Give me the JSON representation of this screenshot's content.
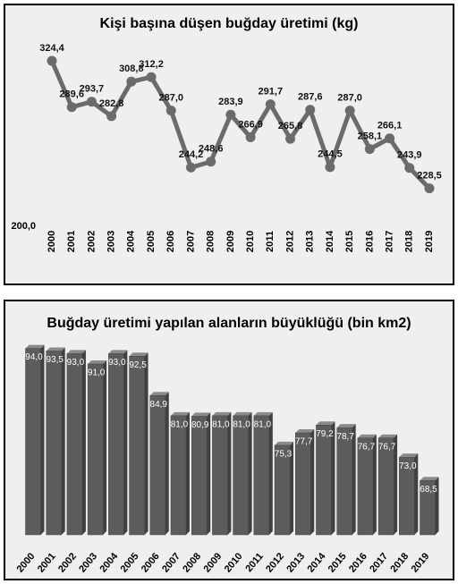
{
  "chart_data": [
    {
      "type": "line",
      "title": "Kişi başına düşen buğday üretimi (kg)",
      "categories": [
        "2000",
        "2001",
        "2002",
        "2003",
        "2004",
        "2005",
        "2006",
        "2007",
        "2008",
        "2009",
        "2010",
        "2011",
        "2012",
        "2013",
        "2014",
        "2015",
        "2016",
        "2017",
        "2018",
        "2019"
      ],
      "values": [
        324.4,
        289.6,
        293.7,
        282.8,
        308.8,
        312.2,
        287.0,
        244.2,
        248.6,
        283.9,
        266.9,
        291.7,
        265.8,
        287.6,
        244.5,
        287.0,
        258.1,
        266.1,
        243.9,
        228.5
      ],
      "value_labels": [
        "324,4",
        "289,6",
        "293,7",
        "282,8",
        "308,8",
        "312,2",
        "287,0",
        "244,2",
        "248,6",
        "283,9",
        "266,9",
        "291,7",
        "265,8",
        "287,6",
        "244,5",
        "287,0",
        "258,1",
        "266,1",
        "243,9",
        "228,5"
      ],
      "color": "#6b6b6b",
      "ylim": [
        200,
        350
      ],
      "yticks": [
        {
          "value": 200,
          "label": "200,0"
        }
      ]
    },
    {
      "type": "bar",
      "title": "Buğday üretimi yapılan alanların büyüklüğü (bin km2)",
      "categories": [
        "2000",
        "2001",
        "2002",
        "2003",
        "2004",
        "2005",
        "2006",
        "2007",
        "2008",
        "2009",
        "2010",
        "2011",
        "2012",
        "2013",
        "2014",
        "2015",
        "2016",
        "2017",
        "2018",
        "2019"
      ],
      "values": [
        94.0,
        93.5,
        93.0,
        91.0,
        93.0,
        92.5,
        84.9,
        81.0,
        80.9,
        81.0,
        81.0,
        81.0,
        75.3,
        77.7,
        79.2,
        78.7,
        76.7,
        76.7,
        73.0,
        68.5
      ],
      "value_labels": [
        "94,0",
        "93,5",
        "93,0",
        "91,0",
        "93,0",
        "92,5",
        "84,9",
        "81,0",
        "80,9",
        "81,0",
        "81,0",
        "81,0",
        "75,3",
        "77,7",
        "79,2",
        "78,7",
        "76,7",
        "76,7",
        "73,0",
        "68,5"
      ],
      "color": "#5c5c5c",
      "ylim": [
        58,
        96
      ]
    }
  ]
}
